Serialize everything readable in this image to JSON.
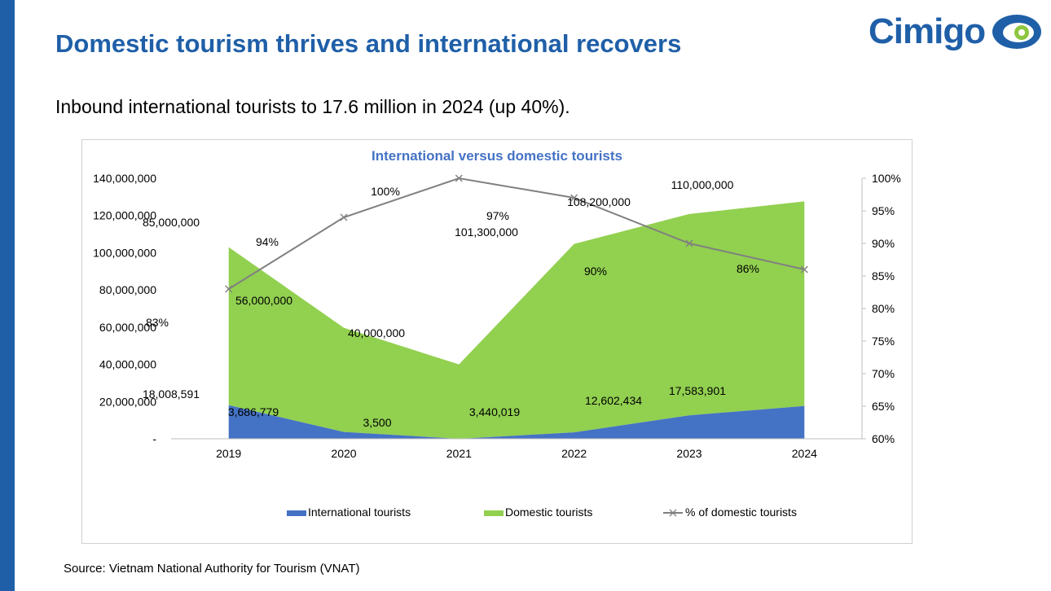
{
  "slide": {
    "title": "Domestic tourism thrives and international recovers",
    "subtitle": "Inbound international tourists to 17.6 million in 2024 (up 40%).",
    "source": "Source: Vietnam National Authority for Tourism (VNAT)",
    "logo": {
      "text": "Cimigo",
      "icon": "eye-logo-icon",
      "text_color": "#1f5fa8",
      "accent": "#8dc63f"
    },
    "accent_bar_color": "#1f5fa8"
  },
  "chart_data": {
    "type": "area",
    "title": "International versus domestic tourists",
    "categories": [
      "2019",
      "2020",
      "2021",
      "2022",
      "2023",
      "2024"
    ],
    "series": [
      {
        "name": "International tourists",
        "kind": "area",
        "axis": "left",
        "color": "#4472c4",
        "values": [
          18008591,
          3686779,
          3500,
          3440019,
          12602434,
          17583901
        ],
        "labels": [
          "18,008,591",
          "3,686,779",
          "3,500",
          "3,440,019",
          "12,602,434",
          "17,583,901"
        ]
      },
      {
        "name": "Domestic tourists",
        "kind": "area",
        "axis": "left",
        "stacked": true,
        "color": "#92d050",
        "values": [
          85000000,
          56000000,
          40000000,
          101300000,
          108200000,
          110000000
        ],
        "labels": [
          "85,000,000",
          "56,000,000",
          "40,000,000",
          "101,300,000",
          "108,200,000",
          "110,000,000"
        ]
      },
      {
        "name": "% of domestic tourists",
        "kind": "line",
        "axis": "right",
        "color": "#808080",
        "marker": "x",
        "values": [
          83,
          94,
          100,
          97,
          90,
          86
        ],
        "labels": [
          "83%",
          "94%",
          "100%",
          "97%",
          "90%",
          "86%"
        ]
      }
    ],
    "y_left": {
      "ylim": [
        0,
        140000000
      ],
      "ticks": [
        0,
        20000000,
        40000000,
        60000000,
        80000000,
        100000000,
        120000000,
        140000000
      ],
      "tick_labels": [
        "-",
        "20,000,000",
        "40,000,000",
        "60,000,000",
        "80,000,000",
        "100,000,000",
        "120,000,000",
        "140,000,000"
      ]
    },
    "y_right": {
      "ylim": [
        60,
        100
      ],
      "ticks": [
        60,
        65,
        70,
        75,
        80,
        85,
        90,
        95,
        100
      ],
      "tick_labels": [
        "60%",
        "65%",
        "70%",
        "75%",
        "80%",
        "85%",
        "90%",
        "95%",
        "100%"
      ]
    },
    "grid": false,
    "legend_position": "bottom"
  }
}
